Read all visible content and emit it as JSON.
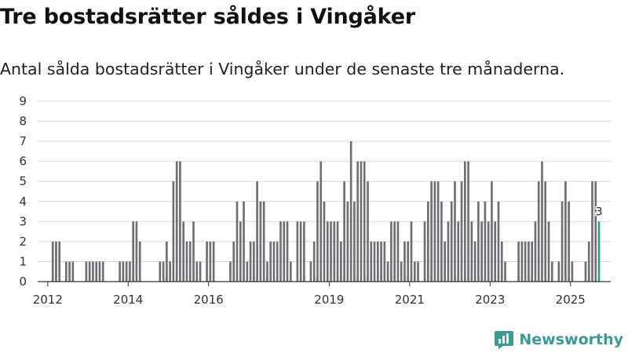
{
  "header": {
    "title": "Tre bostadsrätter såldes i Vingåker",
    "subtitle": "Antal sålda bostadsrätter i Vingåker under de senaste tre månaderna."
  },
  "brand": {
    "name": "Newsworthy",
    "color": "#3a9a94"
  },
  "colors": {
    "bar": "#6f6e72",
    "highlight": "#2a9d8f",
    "grid": "#d9d9d9",
    "axis": "#333333"
  },
  "chart_data": {
    "type": "bar",
    "title": "Tre bostadsrätter såldes i Vingåker",
    "subtitle": "Antal sålda bostadsrätter i Vingåker under de senaste tre månaderna.",
    "xlabel": "",
    "ylabel": "",
    "ylim": [
      0,
      9
    ],
    "yticks": [
      0,
      1,
      2,
      3,
      4,
      5,
      6,
      7,
      8,
      9
    ],
    "grid": true,
    "x_start": "2011-10",
    "x_end": "2025-12",
    "xtick_labels": [
      {
        "label": "2012",
        "month": "2012-01"
      },
      {
        "label": "2014",
        "month": "2014-01"
      },
      {
        "label": "2016",
        "month": "2016-01"
      },
      {
        "label": "2019",
        "month": "2019-01"
      },
      {
        "label": "2021",
        "month": "2021-01"
      },
      {
        "label": "2023",
        "month": "2023-01"
      },
      {
        "label": "2025",
        "month": "2025-01"
      }
    ],
    "highlight_month": "2025-09",
    "highlight_label": "3",
    "values": [
      {
        "month": "2011-10",
        "value": 0
      },
      {
        "month": "2011-11",
        "value": 0
      },
      {
        "month": "2011-12",
        "value": 0
      },
      {
        "month": "2012-01",
        "value": 0
      },
      {
        "month": "2012-02",
        "value": 2
      },
      {
        "month": "2012-03",
        "value": 2
      },
      {
        "month": "2012-04",
        "value": 2
      },
      {
        "month": "2012-05",
        "value": 0
      },
      {
        "month": "2012-06",
        "value": 1
      },
      {
        "month": "2012-07",
        "value": 1
      },
      {
        "month": "2012-08",
        "value": 1
      },
      {
        "month": "2012-09",
        "value": 0
      },
      {
        "month": "2012-10",
        "value": 0
      },
      {
        "month": "2012-11",
        "value": 0
      },
      {
        "month": "2012-12",
        "value": 1
      },
      {
        "month": "2013-01",
        "value": 1
      },
      {
        "month": "2013-02",
        "value": 1
      },
      {
        "month": "2013-03",
        "value": 1
      },
      {
        "month": "2013-04",
        "value": 1
      },
      {
        "month": "2013-05",
        "value": 1
      },
      {
        "month": "2013-06",
        "value": 0
      },
      {
        "month": "2013-07",
        "value": 0
      },
      {
        "month": "2013-08",
        "value": 0
      },
      {
        "month": "2013-09",
        "value": 0
      },
      {
        "month": "2013-10",
        "value": 1
      },
      {
        "month": "2013-11",
        "value": 1
      },
      {
        "month": "2013-12",
        "value": 1
      },
      {
        "month": "2014-01",
        "value": 1
      },
      {
        "month": "2014-02",
        "value": 3
      },
      {
        "month": "2014-03",
        "value": 3
      },
      {
        "month": "2014-04",
        "value": 2
      },
      {
        "month": "2014-05",
        "value": 0
      },
      {
        "month": "2014-06",
        "value": 0
      },
      {
        "month": "2014-07",
        "value": 0
      },
      {
        "month": "2014-08",
        "value": 0
      },
      {
        "month": "2014-09",
        "value": 0
      },
      {
        "month": "2014-10",
        "value": 1
      },
      {
        "month": "2014-11",
        "value": 1
      },
      {
        "month": "2014-12",
        "value": 2
      },
      {
        "month": "2015-01",
        "value": 1
      },
      {
        "month": "2015-02",
        "value": 5
      },
      {
        "month": "2015-03",
        "value": 6
      },
      {
        "month": "2015-04",
        "value": 6
      },
      {
        "month": "2015-05",
        "value": 3
      },
      {
        "month": "2015-06",
        "value": 2
      },
      {
        "month": "2015-07",
        "value": 2
      },
      {
        "month": "2015-08",
        "value": 3
      },
      {
        "month": "2015-09",
        "value": 1
      },
      {
        "month": "2015-10",
        "value": 1
      },
      {
        "month": "2015-11",
        "value": 0
      },
      {
        "month": "2015-12",
        "value": 2
      },
      {
        "month": "2016-01",
        "value": 2
      },
      {
        "month": "2016-02",
        "value": 2
      },
      {
        "month": "2016-03",
        "value": 0
      },
      {
        "month": "2016-04",
        "value": 0
      },
      {
        "month": "2016-05",
        "value": 0
      },
      {
        "month": "2016-06",
        "value": 0
      },
      {
        "month": "2016-07",
        "value": 1
      },
      {
        "month": "2016-08",
        "value": 2
      },
      {
        "month": "2016-09",
        "value": 4
      },
      {
        "month": "2016-10",
        "value": 3
      },
      {
        "month": "2016-11",
        "value": 4
      },
      {
        "month": "2016-12",
        "value": 1
      },
      {
        "month": "2017-01",
        "value": 2
      },
      {
        "month": "2017-02",
        "value": 2
      },
      {
        "month": "2017-03",
        "value": 5
      },
      {
        "month": "2017-04",
        "value": 4
      },
      {
        "month": "2017-05",
        "value": 4
      },
      {
        "month": "2017-06",
        "value": 1
      },
      {
        "month": "2017-07",
        "value": 2
      },
      {
        "month": "2017-08",
        "value": 2
      },
      {
        "month": "2017-09",
        "value": 2
      },
      {
        "month": "2017-10",
        "value": 3
      },
      {
        "month": "2017-11",
        "value": 3
      },
      {
        "month": "2017-12",
        "value": 3
      },
      {
        "month": "2018-01",
        "value": 1
      },
      {
        "month": "2018-02",
        "value": 0
      },
      {
        "month": "2018-03",
        "value": 3
      },
      {
        "month": "2018-04",
        "value": 3
      },
      {
        "month": "2018-05",
        "value": 3
      },
      {
        "month": "2018-06",
        "value": 0
      },
      {
        "month": "2018-07",
        "value": 1
      },
      {
        "month": "2018-08",
        "value": 2
      },
      {
        "month": "2018-09",
        "value": 5
      },
      {
        "month": "2018-10",
        "value": 6
      },
      {
        "month": "2018-11",
        "value": 4
      },
      {
        "month": "2018-12",
        "value": 3
      },
      {
        "month": "2019-01",
        "value": 3
      },
      {
        "month": "2019-02",
        "value": 3
      },
      {
        "month": "2019-03",
        "value": 3
      },
      {
        "month": "2019-04",
        "value": 2
      },
      {
        "month": "2019-05",
        "value": 5
      },
      {
        "month": "2019-06",
        "value": 4
      },
      {
        "month": "2019-07",
        "value": 7
      },
      {
        "month": "2019-08",
        "value": 4
      },
      {
        "month": "2019-09",
        "value": 6
      },
      {
        "month": "2019-10",
        "value": 6
      },
      {
        "month": "2019-11",
        "value": 6
      },
      {
        "month": "2019-12",
        "value": 5
      },
      {
        "month": "2020-01",
        "value": 2
      },
      {
        "month": "2020-02",
        "value": 2
      },
      {
        "month": "2020-03",
        "value": 2
      },
      {
        "month": "2020-04",
        "value": 2
      },
      {
        "month": "2020-05",
        "value": 2
      },
      {
        "month": "2020-06",
        "value": 1
      },
      {
        "month": "2020-07",
        "value": 3
      },
      {
        "month": "2020-08",
        "value": 3
      },
      {
        "month": "2020-09",
        "value": 3
      },
      {
        "month": "2020-10",
        "value": 1
      },
      {
        "month": "2020-11",
        "value": 2
      },
      {
        "month": "2020-12",
        "value": 2
      },
      {
        "month": "2021-01",
        "value": 3
      },
      {
        "month": "2021-02",
        "value": 1
      },
      {
        "month": "2021-03",
        "value": 1
      },
      {
        "month": "2021-04",
        "value": 0
      },
      {
        "month": "2021-05",
        "value": 3
      },
      {
        "month": "2021-06",
        "value": 4
      },
      {
        "month": "2021-07",
        "value": 5
      },
      {
        "month": "2021-08",
        "value": 5
      },
      {
        "month": "2021-09",
        "value": 5
      },
      {
        "month": "2021-10",
        "value": 4
      },
      {
        "month": "2021-11",
        "value": 2
      },
      {
        "month": "2021-12",
        "value": 3
      },
      {
        "month": "2022-01",
        "value": 4
      },
      {
        "month": "2022-02",
        "value": 5
      },
      {
        "month": "2022-03",
        "value": 3
      },
      {
        "month": "2022-04",
        "value": 5
      },
      {
        "month": "2022-05",
        "value": 6
      },
      {
        "month": "2022-06",
        "value": 6
      },
      {
        "month": "2022-07",
        "value": 3
      },
      {
        "month": "2022-08",
        "value": 2
      },
      {
        "month": "2022-09",
        "value": 4
      },
      {
        "month": "2022-10",
        "value": 3
      },
      {
        "month": "2022-11",
        "value": 4
      },
      {
        "month": "2022-12",
        "value": 3
      },
      {
        "month": "2023-01",
        "value": 5
      },
      {
        "month": "2023-02",
        "value": 3
      },
      {
        "month": "2023-03",
        "value": 4
      },
      {
        "month": "2023-04",
        "value": 2
      },
      {
        "month": "2023-05",
        "value": 1
      },
      {
        "month": "2023-06",
        "value": 0
      },
      {
        "month": "2023-07",
        "value": 0
      },
      {
        "month": "2023-08",
        "value": 0
      },
      {
        "month": "2023-09",
        "value": 2
      },
      {
        "month": "2023-10",
        "value": 2
      },
      {
        "month": "2023-11",
        "value": 2
      },
      {
        "month": "2023-12",
        "value": 2
      },
      {
        "month": "2024-01",
        "value": 2
      },
      {
        "month": "2024-02",
        "value": 3
      },
      {
        "month": "2024-03",
        "value": 5
      },
      {
        "month": "2024-04",
        "value": 6
      },
      {
        "month": "2024-05",
        "value": 5
      },
      {
        "month": "2024-06",
        "value": 3
      },
      {
        "month": "2024-07",
        "value": 1
      },
      {
        "month": "2024-08",
        "value": 0
      },
      {
        "month": "2024-09",
        "value": 1
      },
      {
        "month": "2024-10",
        "value": 4
      },
      {
        "month": "2024-11",
        "value": 5
      },
      {
        "month": "2024-12",
        "value": 4
      },
      {
        "month": "2025-01",
        "value": 1
      },
      {
        "month": "2025-02",
        "value": 0
      },
      {
        "month": "2025-03",
        "value": 0
      },
      {
        "month": "2025-04",
        "value": 0
      },
      {
        "month": "2025-05",
        "value": 1
      },
      {
        "month": "2025-06",
        "value": 2
      },
      {
        "month": "2025-07",
        "value": 5
      },
      {
        "month": "2025-08",
        "value": 5
      },
      {
        "month": "2025-09",
        "value": 3
      },
      {
        "month": "2025-10",
        "value": 0
      },
      {
        "month": "2025-11",
        "value": 0
      },
      {
        "month": "2025-12",
        "value": 0
      }
    ]
  }
}
